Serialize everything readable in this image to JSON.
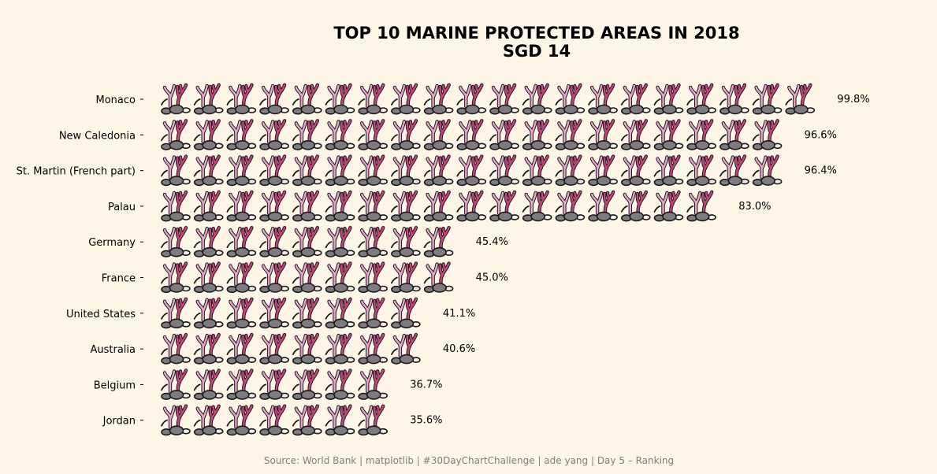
{
  "chart_data": {
    "type": "bar",
    "title": "TOP 10 MARINE PROTECTED AREAS IN 2018",
    "subtitle": "SGD 14",
    "categories": [
      "Monaco",
      "New Caledonia",
      "St. Martin (French part)",
      "Palau",
      "Germany",
      "France",
      "United States",
      "Australia",
      "Belgium",
      "Jordan"
    ],
    "values": [
      99.8,
      96.6,
      96.4,
      83.0,
      45.4,
      45.0,
      41.1,
      40.6,
      36.7,
      35.6
    ],
    "value_labels": [
      "99.8%",
      "96.6%",
      "96.4%",
      "83.0%",
      "45.4%",
      "45.0%",
      "41.1%",
      "40.6%",
      "36.7%",
      "35.6%"
    ],
    "icon": "coral-icon",
    "xlabel": "",
    "ylabel": "",
    "grid": false,
    "source": "Source: World Bank | matplotlib | #30DayChartChallenge | ade yang | Day 5 – Ranking"
  },
  "colors": {
    "background": "#fdf5e6",
    "coral_light": "#e8a6cc",
    "coral_dark": "#c9447a",
    "rock": "#7d7a80",
    "outline": "#1a1a1a",
    "source_text": "#7f7f7f"
  }
}
